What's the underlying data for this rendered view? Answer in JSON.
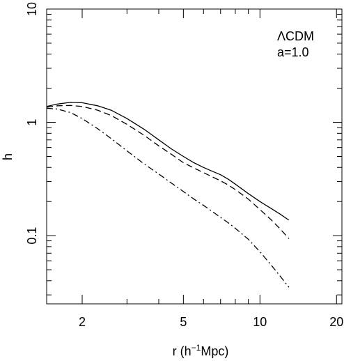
{
  "chart_data": {
    "type": "line",
    "title": "",
    "xlabel_main": "r (h",
    "xlabel_sup": "−1",
    "xlabel_tail": "Mpc)",
    "ylabel": "h",
    "xscale": "log",
    "yscale": "log",
    "xlim": [
      1.45,
      21
    ],
    "ylim": [
      0.025,
      10
    ],
    "grid": false,
    "annotations": [
      "ΛCDM",
      "a=1.0"
    ],
    "x_major_ticks": [
      2,
      5,
      10,
      20
    ],
    "x_tick_labels": [
      "2",
      "5",
      "10",
      "20"
    ],
    "y_major_ticks": [
      0.1,
      1,
      10
    ],
    "y_tick_labels": [
      "0.1",
      "1",
      "10"
    ],
    "series": [
      {
        "style": "solid",
        "x": [
          1.45,
          1.6,
          1.8,
          2.0,
          2.3,
          2.6,
          3.0,
          3.5,
          4.0,
          4.5,
          5.0,
          5.5,
          6.0,
          6.5,
          7.0,
          7.5,
          8.0,
          9.0,
          10.0,
          11.0,
          12.0,
          13.0
        ],
        "y": [
          1.38,
          1.45,
          1.5,
          1.49,
          1.4,
          1.28,
          1.08,
          0.87,
          0.7,
          0.58,
          0.5,
          0.44,
          0.4,
          0.37,
          0.345,
          0.315,
          0.285,
          0.235,
          0.2,
          0.175,
          0.155,
          0.137
        ]
      },
      {
        "style": "dashed",
        "x": [
          1.45,
          1.6,
          1.8,
          2.0,
          2.3,
          2.6,
          3.0,
          3.5,
          4.0,
          4.5,
          5.0,
          5.5,
          6.0,
          6.5,
          7.0,
          7.5,
          8.0,
          9.0,
          10.0,
          11.0,
          12.0,
          13.0
        ],
        "y": [
          1.36,
          1.4,
          1.41,
          1.38,
          1.28,
          1.15,
          0.96,
          0.77,
          0.62,
          0.52,
          0.44,
          0.395,
          0.36,
          0.33,
          0.305,
          0.28,
          0.255,
          0.21,
          0.17,
          0.14,
          0.115,
          0.094
        ]
      },
      {
        "style": "dashdot",
        "x": [
          1.45,
          1.6,
          1.8,
          2.0,
          2.3,
          2.6,
          3.0,
          3.5,
          4.0,
          4.5,
          5.0,
          5.5,
          6.0,
          6.5,
          7.0,
          7.5,
          8.0,
          9.0,
          10.0,
          11.0,
          12.0,
          13.0
        ],
        "y": [
          1.33,
          1.31,
          1.22,
          1.08,
          0.88,
          0.72,
          0.56,
          0.43,
          0.35,
          0.29,
          0.245,
          0.21,
          0.185,
          0.163,
          0.145,
          0.13,
          0.116,
          0.093,
          0.072,
          0.056,
          0.044,
          0.035
        ]
      }
    ]
  }
}
